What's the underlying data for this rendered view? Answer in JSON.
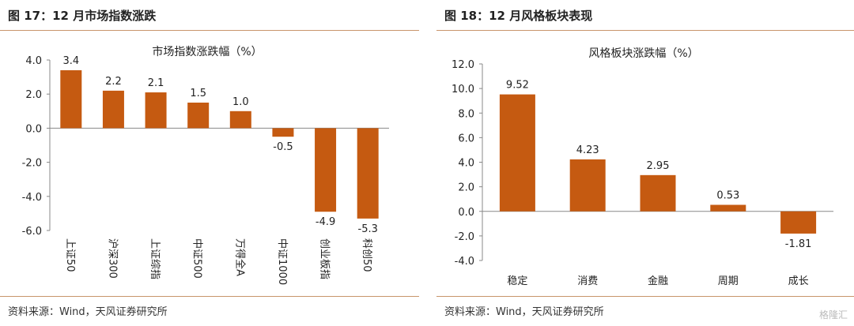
{
  "left": {
    "figure_title": "图 17：12 月市场指数涨跌",
    "source": "资料来源：Wind，天风证券研究所"
  },
  "right": {
    "figure_title": "图 18：12 月风格板块表现",
    "source": "资料来源：Wind，天风证券研究所"
  },
  "watermark": "格隆汇",
  "colors": {
    "bar": "#c55a11",
    "rule": "#c8956b",
    "axis": "#888888"
  },
  "chart_data": [
    {
      "type": "bar",
      "title": "市场指数涨跌幅（%）",
      "categories": [
        "上证50",
        "沪深300",
        "上证综指",
        "中证500",
        "万得全A",
        "中证1000",
        "创业板指",
        "科创50"
      ],
      "values": [
        3.4,
        2.2,
        2.1,
        1.5,
        1.0,
        -0.5,
        -4.9,
        -5.3
      ],
      "data_labels": [
        "3.4",
        "2.2",
        "2.1",
        "1.5",
        "1.0",
        "-0.5",
        "-4.9",
        "-5.3"
      ],
      "ylim": [
        -6.0,
        4.0
      ],
      "yticks": [
        "4.0",
        "2.0",
        "0.0",
        "-2.0",
        "-4.0",
        "-6.0"
      ],
      "category_label_orientation": "vertical",
      "grid": false,
      "xlabel": "",
      "ylabel": ""
    },
    {
      "type": "bar",
      "title": "风格板块涨跌幅（%）",
      "categories": [
        "稳定",
        "消费",
        "金融",
        "周期",
        "成长"
      ],
      "values": [
        9.52,
        4.23,
        2.95,
        0.53,
        -1.81
      ],
      "data_labels": [
        "9.52",
        "4.23",
        "2.95",
        "0.53",
        "-1.81"
      ],
      "ylim": [
        -4.0,
        12.0
      ],
      "yticks": [
        "12.0",
        "10.0",
        "8.0",
        "6.0",
        "4.0",
        "2.0",
        "0.0",
        "-2.0",
        "-4.0"
      ],
      "category_label_orientation": "horizontal",
      "grid": false,
      "xlabel": "",
      "ylabel": ""
    }
  ]
}
